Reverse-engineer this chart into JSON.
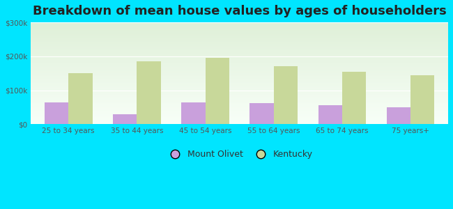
{
  "title": "Breakdown of mean house values by ages of householders",
  "categories": [
    "25 to 34 years",
    "35 to 44 years",
    "45 to 54 years",
    "55 to 64 years",
    "65 to 74 years",
    "75 years+"
  ],
  "mount_olivet": [
    65000,
    30000,
    65000,
    62000,
    55000,
    50000
  ],
  "kentucky": [
    150000,
    185000,
    195000,
    170000,
    155000,
    145000
  ],
  "mount_olivet_color": "#c9a0dc",
  "kentucky_color": "#c8d89a",
  "background_outer": "#00e5ff",
  "background_inner_top": "#dff0d8",
  "background_inner_bottom": "#f8fff8",
  "ylim": [
    0,
    300000
  ],
  "yticks": [
    0,
    100000,
    200000,
    300000
  ],
  "ytick_labels": [
    "$0",
    "$100k",
    "$200k",
    "$300k"
  ],
  "bar_width": 0.35,
  "title_fontsize": 13,
  "legend_labels": [
    "Mount Olivet",
    "Kentucky"
  ]
}
